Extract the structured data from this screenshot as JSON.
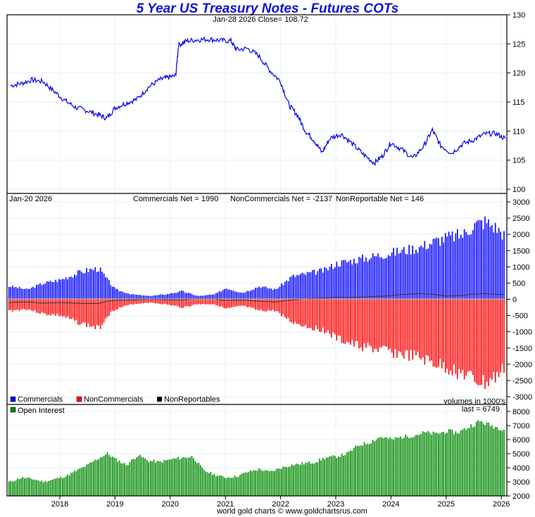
{
  "title": "5 Year US Treasury Notes - Futures COTs",
  "footer": "world gold charts © www.goldchartsrus.com",
  "colors": {
    "title": "#1010e0",
    "price_line": "#0000ee",
    "commercials": "#0000ff",
    "noncommercials": "#ff0000",
    "nonreportables": "#000000",
    "open_interest": "#008800",
    "grid": "#e6f0fa"
  },
  "chart_data": [
    {
      "type": "line",
      "name": "price",
      "header": "Jan-28  2026   Close= 108.72",
      "ylim": [
        100,
        130
      ],
      "y_ticks": [
        "130",
        "125",
        "120",
        "115",
        "110",
        "105",
        "100"
      ],
      "x_ticks": [
        "2018",
        "2019",
        "2020",
        "2021",
        "2022",
        "2023",
        "2024",
        "2025",
        "2026"
      ],
      "x": [
        2017.1,
        2017.3,
        2017.5,
        2017.7,
        2017.9,
        2018.1,
        2018.3,
        2018.5,
        2018.7,
        2018.85,
        2019.0,
        2019.2,
        2019.4,
        2019.6,
        2019.8,
        2019.95,
        2020.1,
        2020.15,
        2020.3,
        2020.5,
        2020.7,
        2020.9,
        2021.1,
        2021.2,
        2021.4,
        2021.6,
        2021.8,
        2022.0,
        2022.15,
        2022.3,
        2022.45,
        2022.6,
        2022.75,
        2022.9,
        2023.1,
        2023.3,
        2023.5,
        2023.7,
        2023.85,
        2024.0,
        2024.2,
        2024.4,
        2024.6,
        2024.75,
        2024.9,
        2025.1,
        2025.3,
        2025.5,
        2025.7,
        2025.9,
        2026.07
      ],
      "y": [
        117.8,
        118.2,
        118.8,
        118.5,
        116.8,
        115.2,
        114.0,
        113.5,
        112.8,
        112.2,
        114.0,
        114.8,
        115.5,
        117.5,
        118.8,
        119.2,
        119.5,
        124.8,
        125.5,
        125.7,
        125.8,
        125.6,
        125.5,
        124.0,
        124.2,
        123.0,
        120.5,
        118.5,
        114.5,
        112.8,
        110.0,
        108.5,
        106.3,
        108.8,
        109.5,
        107.8,
        106.0,
        104.5,
        105.8,
        108.0,
        106.8,
        105.3,
        107.5,
        110.2,
        107.5,
        106.2,
        107.8,
        108.5,
        109.5,
        109.6,
        108.72
      ]
    },
    {
      "type": "bar",
      "name": "cot_net",
      "header_date": "Jan-20  2026",
      "header_commercials": "Commercials Net = 1990",
      "header_noncommercials": "NonCommercials Net = -2137",
      "header_nonreportables": "NonReportable Net = 146",
      "ylim": [
        -3000,
        3000
      ],
      "y_ticks": [
        "3000",
        "2500",
        "2000",
        "1500",
        "1000",
        "500",
        "0",
        "-500",
        "-1000",
        "-1500",
        "-2000",
        "-2500",
        "-3000"
      ],
      "legend": [
        "Commercials",
        "NonCommercials",
        "NonReportables"
      ],
      "note": "volumes in 1000's",
      "x": [
        2017.1,
        2017.4,
        2017.7,
        2018.0,
        2018.3,
        2018.5,
        2018.7,
        2018.85,
        2019.0,
        2019.3,
        2019.6,
        2019.9,
        2020.2,
        2020.5,
        2020.8,
        2021.0,
        2021.3,
        2021.6,
        2021.9,
        2022.2,
        2022.5,
        2022.8,
        2023.0,
        2023.3,
        2023.6,
        2023.9,
        2024.2,
        2024.5,
        2024.8,
        2025.0,
        2025.3,
        2025.5,
        2025.7,
        2025.9,
        2026.05
      ],
      "series": [
        {
          "name": "Commercials",
          "values": [
            400,
            300,
            500,
            600,
            800,
            900,
            950,
            600,
            300,
            150,
            100,
            150,
            250,
            100,
            150,
            350,
            200,
            400,
            300,
            700,
            800,
            900,
            1100,
            1200,
            1300,
            1400,
            1500,
            1600,
            1800,
            1900,
            2000,
            2300,
            2400,
            2200,
            1990
          ]
        },
        {
          "name": "NonCommercials",
          "values": [
            -350,
            -300,
            -450,
            -500,
            -700,
            -800,
            -900,
            -500,
            -300,
            -150,
            -100,
            -150,
            -250,
            -150,
            -150,
            -300,
            -200,
            -350,
            -350,
            -700,
            -850,
            -950,
            -1200,
            -1400,
            -1500,
            -1600,
            -1700,
            -1800,
            -2000,
            -2100,
            -2300,
            -2500,
            -2600,
            -2400,
            -2137
          ]
        },
        {
          "name": "NonReportables",
          "values": [
            -100,
            -80,
            -120,
            -100,
            -120,
            -130,
            -130,
            -60,
            -30,
            -20,
            0,
            -10,
            -20,
            20,
            10,
            -40,
            -20,
            -60,
            -80,
            -20,
            20,
            40,
            60,
            60,
            80,
            100,
            150,
            180,
            150,
            100,
            120,
            160,
            180,
            160,
            146
          ]
        }
      ]
    },
    {
      "type": "bar",
      "name": "open_interest",
      "legend": [
        "Open Interest"
      ],
      "last_label": "last = 6749",
      "ylim": [
        2000,
        8000
      ],
      "y_ticks": [
        "8000",
        "7000",
        "6000",
        "5000",
        "4000",
        "3000",
        "2000"
      ],
      "x": [
        2017.1,
        2017.3,
        2017.5,
        2017.7,
        2017.9,
        2018.1,
        2018.3,
        2018.5,
        2018.7,
        2018.85,
        2019.0,
        2019.2,
        2019.4,
        2019.6,
        2019.8,
        2020.0,
        2020.2,
        2020.4,
        2020.6,
        2020.8,
        2021.0,
        2021.2,
        2021.4,
        2021.6,
        2021.8,
        2022.0,
        2022.2,
        2022.4,
        2022.6,
        2022.8,
        2023.0,
        2023.2,
        2023.4,
        2023.6,
        2023.8,
        2024.0,
        2024.2,
        2024.4,
        2024.6,
        2024.8,
        2025.0,
        2025.2,
        2025.4,
        2025.6,
        2025.8,
        2026.05
      ],
      "values": [
        3000,
        3300,
        3200,
        3000,
        3200,
        3400,
        3800,
        4200,
        4700,
        5000,
        4600,
        4200,
        4900,
        4500,
        4400,
        4600,
        4700,
        4800,
        3800,
        3500,
        3300,
        3400,
        3700,
        3900,
        3700,
        4000,
        4200,
        4300,
        4400,
        4700,
        4800,
        5000,
        5600,
        5800,
        6200,
        6000,
        6200,
        6300,
        6500,
        6400,
        6600,
        6500,
        6900,
        7300,
        7000,
        6749
      ]
    }
  ]
}
